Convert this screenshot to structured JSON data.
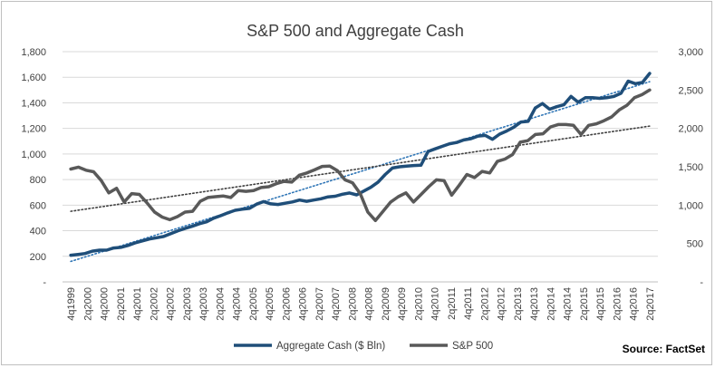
{
  "chart_data": {
    "type": "line",
    "title": "S&P 500 and Aggregate Cash",
    "source": "Source: FactSet",
    "xlabel": "",
    "ylabel_left": "",
    "ylabel_right": "",
    "ylim_left": [
      0,
      1800
    ],
    "ylim_right": [
      0,
      3000
    ],
    "left_tick_labels": [
      "-",
      "200",
      "400",
      "600",
      "800",
      "1,000",
      "1,200",
      "1,400",
      "1,600",
      "1,800"
    ],
    "right_tick_labels": [
      "-",
      "500",
      "1,000",
      "1,500",
      "2,000",
      "2,500",
      "3,000"
    ],
    "x_tick_labels": [
      "4q1999",
      "2q2000",
      "4q2000",
      "2q2001",
      "4q2001",
      "2q2002",
      "4q2002",
      "2q2003",
      "4q2003",
      "2q2004",
      "4q2004",
      "2q2005",
      "4q2005",
      "2q2006",
      "4q2006",
      "2q2007",
      "4q2007",
      "2q2008",
      "4q2008",
      "2q2009",
      "4q2009",
      "2q2010",
      "4q2010",
      "2q2011",
      "4q2011",
      "2q2012",
      "4q2012",
      "2q2013",
      "4q2013",
      "2q2014",
      "4q2014",
      "2q2015",
      "4q2015",
      "2q2016",
      "4q2016",
      "2q2017"
    ],
    "grid": true,
    "legend_position": "bottom",
    "colors": {
      "cash": "#1f4e79",
      "sp500": "#595959",
      "cash_trend": "#2e75b6",
      "sp_trend": "#404040",
      "grid": "#d9d9d9"
    },
    "series": [
      {
        "name": "Aggregate Cash ($ Bln)",
        "axis": "left",
        "values": [
          208,
          215,
          222,
          240,
          248,
          248,
          265,
          270,
          285,
          305,
          320,
          335,
          345,
          355,
          378,
          400,
          418,
          435,
          455,
          470,
          498,
          518,
          540,
          560,
          568,
          575,
          608,
          628,
          610,
          605,
          615,
          625,
          640,
          630,
          640,
          650,
          665,
          670,
          685,
          695,
          680,
          710,
          740,
          780,
          840,
          890,
          900,
          905,
          910,
          912,
          1020,
          1040,
          1060,
          1080,
          1090,
          1110,
          1120,
          1140,
          1145,
          1115,
          1155,
          1180,
          1210,
          1250,
          1255,
          1360,
          1395,
          1350,
          1370,
          1385,
          1450,
          1405,
          1440,
          1440,
          1435,
          1440,
          1450,
          1475,
          1570,
          1550,
          1560,
          1630
        ]
      },
      {
        "name": "S&P 500",
        "axis": "right",
        "values": [
          1470,
          1495,
          1455,
          1435,
          1320,
          1160,
          1220,
          1040,
          1150,
          1140,
          1030,
          910,
          845,
          810,
          850,
          910,
          920,
          1050,
          1100,
          1110,
          1120,
          1100,
          1190,
          1180,
          1190,
          1230,
          1240,
          1280,
          1310,
          1300,
          1390,
          1420,
          1460,
          1505,
          1510,
          1450,
          1330,
          1290,
          1150,
          910,
          800,
          920,
          1040,
          1110,
          1160,
          1040,
          1140,
          1240,
          1330,
          1320,
          1130,
          1260,
          1400,
          1360,
          1440,
          1420,
          1570,
          1600,
          1660,
          1820,
          1840,
          1920,
          1930,
          2020,
          2050,
          2050,
          2040,
          1920,
          2040,
          2060,
          2100,
          2150,
          2240,
          2300,
          2400,
          2440,
          2500
        ]
      }
    ],
    "trendlines": [
      {
        "of": "Aggregate Cash ($ Bln)",
        "style": "dotted",
        "start": 160,
        "end": 1565
      },
      {
        "of": "S&P 500",
        "style": "dotted",
        "start": 920,
        "end": 2030
      }
    ]
  },
  "legend": {
    "cash_label": "Aggregate Cash ($ Bln)",
    "sp_label": "S&P 500"
  }
}
